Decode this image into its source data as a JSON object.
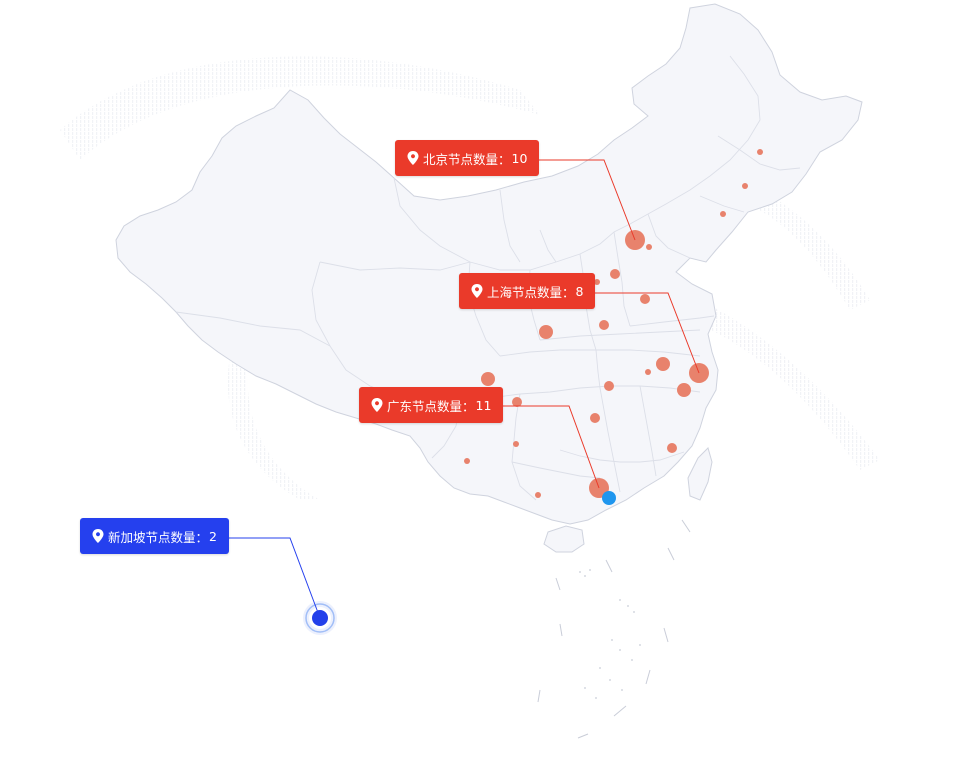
{
  "map": {
    "region": "china",
    "colors": {
      "land_fill": "#f5f6fa",
      "border": "#cfd3de",
      "province_border": "#dcdfe8",
      "bubble": "#e8826c",
      "callout_red": "#ea3a2a",
      "callout_blue": "#2540ee",
      "highlight_dot": "#1f96ee",
      "singapore_dot": "#2340ea"
    }
  },
  "callouts": [
    {
      "id": "beijing",
      "label": "北京节点数量：",
      "value": "10",
      "color": "red",
      "icon": "map-pin-icon"
    },
    {
      "id": "shanghai",
      "label": "上海节点数量：",
      "value": "8",
      "color": "red",
      "icon": "map-pin-icon"
    },
    {
      "id": "guangdong",
      "label": "广东节点数量：",
      "value": "11",
      "color": "red",
      "icon": "map-pin-icon"
    },
    {
      "id": "singapore",
      "label": "新加坡节点数量：",
      "value": "2",
      "color": "blue",
      "icon": "map-pin-icon"
    }
  ]
}
